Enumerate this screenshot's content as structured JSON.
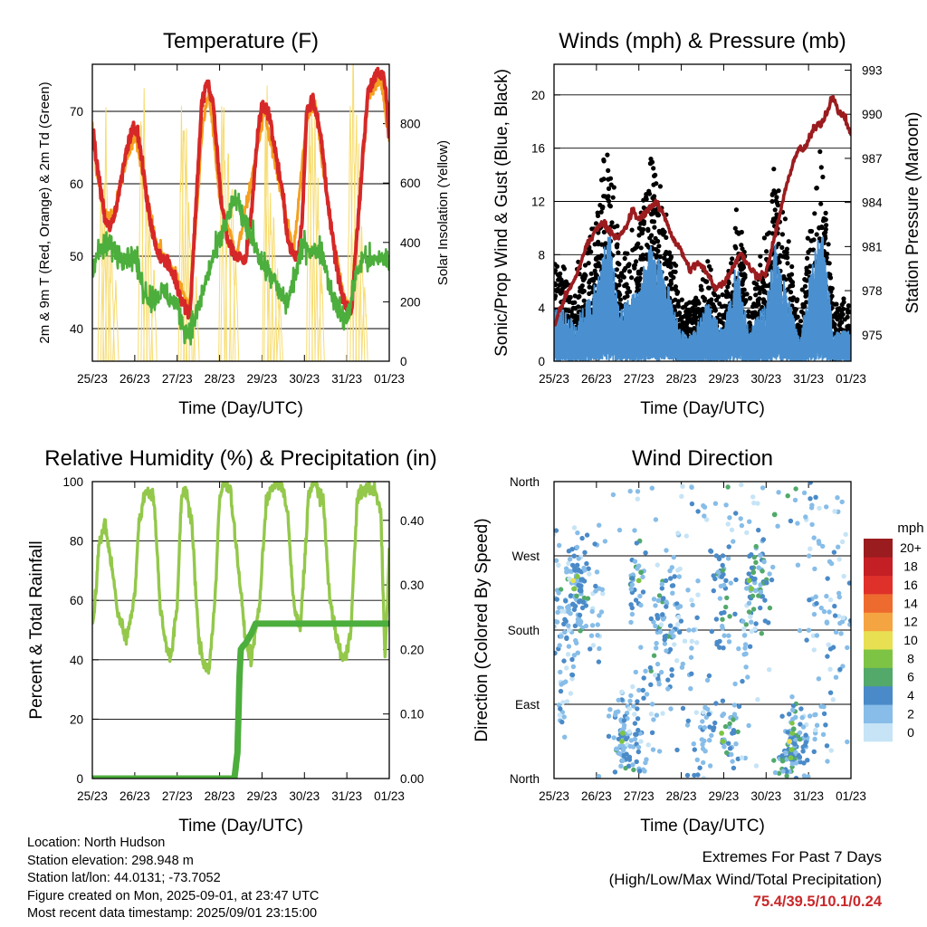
{
  "chart_data": [
    {
      "id": "temperature",
      "type": "line",
      "title": "Temperature (F)",
      "xlabel": "Time (Day/UTC)",
      "ylabel": "2m & 9m T (Red, Orange) & 2m Td (Green)",
      "ylabel_right": "Solar Insolation (Yellow)",
      "x_ticks": [
        "25/23",
        "26/23",
        "27/23",
        "28/23",
        "29/23",
        "30/23",
        "31/23",
        "01/23"
      ],
      "x_range": [
        0,
        7
      ],
      "ylim": [
        35.5,
        76.5
      ],
      "y_ticks": [
        40,
        50,
        60,
        70
      ],
      "ylim_right": [
        0,
        1000
      ],
      "y_ticks_right": [
        0,
        200,
        400,
        600,
        800
      ],
      "grid": true,
      "colors": {
        "t2m": "#d62828",
        "t9m": "#f4a020",
        "td2m": "#4cae3c",
        "solar": "#f7dc6f"
      },
      "series": [
        {
          "key": "t2m",
          "x": [
            0,
            0.1,
            0.3,
            0.4,
            0.5,
            0.6,
            0.75,
            0.9,
            1.0,
            1.1,
            1.2,
            1.3,
            1.5,
            1.75,
            1.95,
            2.1,
            2.3,
            2.5,
            2.58,
            2.7,
            2.85,
            2.95,
            3.05,
            3.2,
            3.4,
            3.6,
            3.75,
            3.9,
            4.0,
            4.15,
            4.3,
            4.5,
            4.62,
            4.75,
            4.85,
            4.95,
            5.05,
            5.2,
            5.4,
            5.6,
            5.75,
            5.9,
            6.0,
            6.1,
            6.3,
            6.5,
            6.7,
            6.85,
            6.92,
            7.0
          ],
          "y": [
            68,
            63,
            55,
            54,
            55,
            58,
            63,
            67,
            68,
            66,
            62,
            57,
            51,
            49,
            47,
            44,
            42,
            63,
            71,
            74,
            71,
            64,
            57,
            52,
            50,
            49,
            56,
            67,
            71,
            70,
            65,
            58,
            52,
            50,
            50,
            55,
            70,
            72,
            66,
            55,
            49,
            44,
            43,
            42,
            58,
            73,
            75,
            75,
            73,
            66
          ]
        },
        {
          "key": "t9m",
          "x": [
            0,
            0.1,
            0.3,
            0.5,
            0.75,
            1.0,
            1.2,
            1.5,
            1.95,
            2.3,
            2.6,
            2.75,
            3.0,
            3.4,
            3.8,
            4.05,
            4.4,
            4.75,
            5.05,
            5.25,
            5.6,
            5.9,
            6.1,
            6.5,
            6.8,
            7.0
          ],
          "y": [
            67.5,
            62,
            56,
            55.5,
            62,
            67,
            61,
            52,
            47.5,
            43,
            68,
            73,
            58,
            50,
            62,
            70,
            60,
            50.5,
            69,
            71,
            55,
            45,
            43,
            72,
            74.5,
            66
          ]
        },
        {
          "key": "td2m",
          "x": [
            0,
            0.1,
            0.2,
            0.4,
            0.6,
            0.8,
            1.0,
            1.2,
            1.4,
            1.6,
            1.8,
            2.0,
            2.2,
            2.4,
            2.6,
            2.8,
            3.0,
            3.2,
            3.4,
            3.6,
            3.8,
            4.0,
            4.2,
            4.4,
            4.6,
            4.8,
            5.0,
            5.2,
            5.4,
            5.6,
            5.8,
            6.0,
            6.2,
            6.4,
            6.6,
            6.8,
            7.0
          ],
          "y": [
            49,
            50,
            51,
            51.5,
            50.5,
            50,
            50,
            45.5,
            44,
            45,
            44.5,
            43,
            39.5,
            41,
            45,
            49,
            52,
            55.5,
            58,
            54,
            52.5,
            49,
            47.5,
            45,
            43.5,
            48,
            52,
            50.5,
            51,
            46,
            42.5,
            41,
            47,
            50,
            49,
            50,
            49
          ]
        },
        {
          "key": "solar",
          "peaks_x": [
            0.2,
            0.27,
            0.32,
            0.37,
            0.45,
            0.55,
            1.15,
            1.22,
            1.28,
            1.35,
            1.45,
            2.1,
            2.16,
            2.22,
            2.28,
            2.35,
            2.45,
            3.05,
            3.1,
            3.2,
            3.3,
            3.38,
            4.08,
            4.12,
            4.2,
            4.28,
            4.36,
            4.42,
            5.12,
            5.18,
            5.25,
            5.32,
            5.4,
            6.08,
            6.15,
            6.22,
            6.28,
            6.35,
            6.42
          ],
          "peaks_y": [
            530,
            600,
            780,
            560,
            400,
            250,
            820,
            870,
            600,
            520,
            300,
            860,
            900,
            700,
            540,
            420,
            260,
            760,
            900,
            700,
            600,
            380,
            740,
            820,
            560,
            480,
            320,
            200,
            830,
            920,
            780,
            560,
            300,
            880,
            960,
            820,
            640,
            450,
            260
          ]
        }
      ]
    },
    {
      "id": "winds",
      "type": "scatter",
      "title": "Winds (mph) & Pressure (mb)",
      "xlabel": "Time (Day/UTC)",
      "ylabel": "Sonic/Prop Wind & Gust (Blue, Black)",
      "ylabel_right": "Station Pressure (Maroon)",
      "x_ticks": [
        "25/23",
        "26/23",
        "27/23",
        "28/23",
        "29/23",
        "30/23",
        "31/23",
        "01/23"
      ],
      "x_range": [
        0,
        7
      ],
      "ylim": [
        0,
        22.3
      ],
      "y_ticks": [
        0,
        4,
        8,
        12,
        16,
        20
      ],
      "ylim_right": [
        973.2,
        993.4
      ],
      "y_ticks_right": [
        975,
        978,
        981,
        984,
        987,
        990,
        993
      ],
      "grid": true,
      "colors": {
        "wind": "#4a90d0",
        "gust": "#000000",
        "pressure": "#9b1c1f"
      },
      "pressure": {
        "x": [
          0,
          0.15,
          0.3,
          0.45,
          0.6,
          0.75,
          0.9,
          1.0,
          1.15,
          1.3,
          1.5,
          1.7,
          1.85,
          2.0,
          2.2,
          2.4,
          2.6,
          2.8,
          3.0,
          3.2,
          3.4,
          3.6,
          3.8,
          4.0,
          4.2,
          4.4,
          4.6,
          4.8,
          5.0,
          5.2,
          5.4,
          5.6,
          5.75,
          5.9,
          6.0,
          6.15,
          6.3,
          6.45,
          6.55,
          6.7,
          6.85,
          7.0
        ],
        "y": [
          975.5,
          976.8,
          977.8,
          978.5,
          979.6,
          981,
          981.6,
          982.3,
          982.6,
          982.2,
          981.5,
          982.3,
          983.5,
          982.8,
          983.5,
          984,
          983.1,
          981.6,
          980.7,
          979.4,
          979.9,
          979.2,
          978.2,
          978.5,
          979.5,
          980.6,
          979.6,
          979,
          979.2,
          981.6,
          984.2,
          986.4,
          987.6,
          987.6,
          988.2,
          989.2,
          989.4,
          990.2,
          991.3,
          990.2,
          989.8,
          988.6
        ]
      },
      "activity": {
        "x": [
          0,
          0.5,
          1.0,
          1.3,
          1.55,
          2.0,
          2.3,
          2.6,
          3.0,
          3.3,
          3.6,
          4.0,
          4.3,
          4.6,
          5.0,
          5.2,
          5.5,
          5.8,
          6.0,
          6.3,
          6.6,
          7.0
        ],
        "gust": [
          6,
          4,
          9,
          14,
          5,
          8,
          12,
          9,
          3,
          3,
          6,
          3,
          10,
          3,
          7,
          12,
          7,
          2,
          8,
          13,
          3,
          3
        ],
        "wind": [
          3,
          2,
          4,
          7,
          2.5,
          4,
          6,
          4.5,
          1.5,
          1.5,
          3,
          1.5,
          5,
          1.5,
          3,
          6,
          3.5,
          1,
          4,
          7,
          1.5,
          1.5
        ]
      }
    },
    {
      "id": "humidity",
      "type": "line",
      "title": "Relative Humidity (%) & Precipitation (in)",
      "xlabel": "Time (Day/UTC)",
      "ylabel": "Percent & Total Rainfall",
      "x_ticks": [
        "25/23",
        "26/23",
        "27/23",
        "28/23",
        "29/23",
        "30/23",
        "31/23",
        "01/23"
      ],
      "x_range": [
        0,
        7
      ],
      "ylim": [
        0,
        100
      ],
      "y_ticks": [
        0,
        20,
        40,
        60,
        80,
        100
      ],
      "ylim_right": [
        0,
        0.46
      ],
      "y_ticks_right": [
        "0.00",
        "0.10",
        "0.20",
        "0.30",
        "0.40"
      ],
      "grid": true,
      "colors": {
        "rh": "#93c84a",
        "precip": "#4cae3c"
      },
      "series": [
        {
          "key": "rh",
          "x": [
            0,
            0.05,
            0.15,
            0.3,
            0.45,
            0.6,
            0.8,
            1.0,
            1.1,
            1.25,
            1.45,
            1.6,
            1.7,
            1.85,
            2.0,
            2.1,
            2.2,
            2.35,
            2.5,
            2.6,
            2.75,
            2.9,
            3.0,
            3.1,
            3.25,
            3.45,
            3.6,
            3.75,
            3.95,
            4.1,
            4.25,
            4.45,
            4.6,
            4.75,
            4.9,
            5.0,
            5.1,
            5.25,
            5.45,
            5.6,
            5.75,
            5.9,
            6.0,
            6.1,
            6.25,
            6.5,
            6.65,
            6.8,
            6.9,
            7.0
          ],
          "y": [
            52,
            56,
            78,
            86,
            72,
            56,
            47,
            62,
            86,
            97,
            95,
            58,
            48,
            40,
            58,
            95,
            98,
            85,
            48,
            40,
            36,
            62,
            94,
            100,
            98,
            70,
            48,
            40,
            60,
            94,
            98,
            100,
            90,
            58,
            50,
            72,
            96,
            100,
            92,
            60,
            48,
            40,
            42,
            52,
            95,
            98,
            97,
            90,
            40,
            76
          ]
        },
        {
          "key": "precip",
          "x": [
            0,
            3.35,
            3.42,
            3.47,
            3.5,
            3.55,
            3.62,
            3.75,
            3.85,
            7.0
          ],
          "y": [
            0,
            0,
            0.04,
            0.16,
            0.2,
            0.205,
            0.21,
            0.225,
            0.24,
            0.24
          ]
        }
      ]
    },
    {
      "id": "direction",
      "type": "scatter",
      "title": "Wind Direction",
      "xlabel": "Time (Day/UTC)",
      "ylabel": "Direction (Colored By Speed)",
      "x_ticks": [
        "25/23",
        "26/23",
        "27/23",
        "28/23",
        "29/23",
        "30/23",
        "31/23",
        "01/23"
      ],
      "x_range": [
        0,
        7
      ],
      "y_range": [
        0,
        360
      ],
      "y_ticks": [
        "North",
        "East",
        "South",
        "West",
        "North"
      ],
      "y_tick_values": [
        0,
        90,
        180,
        270,
        360
      ],
      "grid": true,
      "colorbar": {
        "title": "mph",
        "labels": [
          "0",
          "2",
          "4",
          "6",
          "8",
          "10",
          "12",
          "14",
          "16",
          "18",
          "20+"
        ],
        "colors": [
          "#c6e4f6",
          "#87bde8",
          "#4a8ac8",
          "#52a96a",
          "#7ec444",
          "#e8e052",
          "#f5a442",
          "#ee6b30",
          "#e0302a",
          "#c41f25",
          "#9b1c1f"
        ]
      },
      "clusters": [
        {
          "x": 0.35,
          "dir": 225,
          "sx": 0.15,
          "sd": 40,
          "n": 55,
          "spd": 2.5
        },
        {
          "x": 0.6,
          "dir": 230,
          "sx": 0.1,
          "sd": 30,
          "n": 60,
          "spd": 3.5
        },
        {
          "x": 0.25,
          "dir": 140,
          "sx": 0.15,
          "sd": 45,
          "n": 40,
          "spd": 1.8
        },
        {
          "x": 1.0,
          "dir": 210,
          "sx": 0.12,
          "sd": 50,
          "n": 25,
          "spd": 2
        },
        {
          "x": 1.65,
          "dir": 50,
          "sx": 0.15,
          "sd": 25,
          "n": 70,
          "spd": 3.2
        },
        {
          "x": 1.95,
          "dir": 60,
          "sx": 0.1,
          "sd": 50,
          "n": 30,
          "spd": 2
        },
        {
          "x": 2.0,
          "dir": 250,
          "sx": 0.1,
          "sd": 30,
          "n": 35,
          "spd": 3
        },
        {
          "x": 2.6,
          "dir": 190,
          "sx": 0.18,
          "sd": 40,
          "n": 60,
          "spd": 3.2
        },
        {
          "x": 2.35,
          "dir": 110,
          "sx": 0.15,
          "sd": 50,
          "n": 25,
          "spd": 1.5
        },
        {
          "x": 3.1,
          "dir": 180,
          "sx": 0.25,
          "sd": 50,
          "n": 40,
          "spd": 1.5
        },
        {
          "x": 3.5,
          "dir": 40,
          "sx": 0.2,
          "sd": 40,
          "n": 40,
          "spd": 2.5
        },
        {
          "x": 3.95,
          "dir": 230,
          "sx": 0.15,
          "sd": 35,
          "n": 45,
          "spd": 3.5
        },
        {
          "x": 4.1,
          "dir": 50,
          "sx": 0.15,
          "sd": 25,
          "n": 35,
          "spd": 3.5
        },
        {
          "x": 4.8,
          "dir": 240,
          "sx": 0.15,
          "sd": 30,
          "n": 60,
          "spd": 4
        },
        {
          "x": 4.5,
          "dir": 170,
          "sx": 0.2,
          "sd": 50,
          "n": 30,
          "spd": 1.8
        },
        {
          "x": 5.6,
          "dir": 40,
          "sx": 0.15,
          "sd": 25,
          "n": 70,
          "spd": 4
        },
        {
          "x": 6.0,
          "dir": 50,
          "sx": 0.2,
          "sd": 30,
          "n": 45,
          "spd": 2.5
        },
        {
          "x": 6.2,
          "dir": 230,
          "sx": 0.2,
          "sd": 50,
          "n": 35,
          "spd": 1.5
        },
        {
          "x": 6.75,
          "dir": 180,
          "sx": 0.18,
          "sd": 60,
          "n": 40,
          "spd": 2
        },
        {
          "x": 3.5,
          "dir": 330,
          "sx": 2.8,
          "sd": 30,
          "n": 60,
          "spd": 1.3
        }
      ],
      "high_speed_points": [
        {
          "x": 0.45,
          "dir": 240,
          "spd": 9
        },
        {
          "x": 0.55,
          "dir": 245,
          "spd": 7
        },
        {
          "x": 0.48,
          "dir": 230,
          "spd": 7
        },
        {
          "x": 1.6,
          "dir": 45,
          "spd": 7
        },
        {
          "x": 1.62,
          "dir": 55,
          "spd": 8
        },
        {
          "x": 2.0,
          "dir": 240,
          "spd": 7
        },
        {
          "x": 2.05,
          "dir": 250,
          "spd": 6
        },
        {
          "x": 3.95,
          "dir": 55,
          "spd": 7
        },
        {
          "x": 3.98,
          "dir": 45,
          "spd": 8
        },
        {
          "x": 4.6,
          "dir": 240,
          "spd": 8
        },
        {
          "x": 4.65,
          "dir": 230,
          "spd": 7
        },
        {
          "x": 4.7,
          "dir": 250,
          "spd": 6
        },
        {
          "x": 5.55,
          "dir": 45,
          "spd": 9
        },
        {
          "x": 5.6,
          "dir": 35,
          "spd": 8
        },
        {
          "x": 5.62,
          "dir": 55,
          "spd": 8
        },
        {
          "x": 5.58,
          "dir": 25,
          "spd": 7
        },
        {
          "x": 5.65,
          "dir": 60,
          "spd": 6
        },
        {
          "x": 5.2,
          "dir": 320,
          "spd": 6
        }
      ]
    }
  ],
  "info": {
    "location": "Location: North Hudson",
    "elevation": "Station elevation: 298.948 m",
    "latlon": "Station lat/lon: 44.0131; -73.7052",
    "created": "Figure created on Mon, 2025-09-01, at 23:47 UTC",
    "recent": "Most recent data timestamp: 2025/09/01 23:15:00"
  },
  "extremes": {
    "line1": "Extremes For Past 7 Days",
    "line2": "(High/Low/Max Wind/Total Precipitation)",
    "values": "75.4/39.5/10.1/0.24"
  }
}
